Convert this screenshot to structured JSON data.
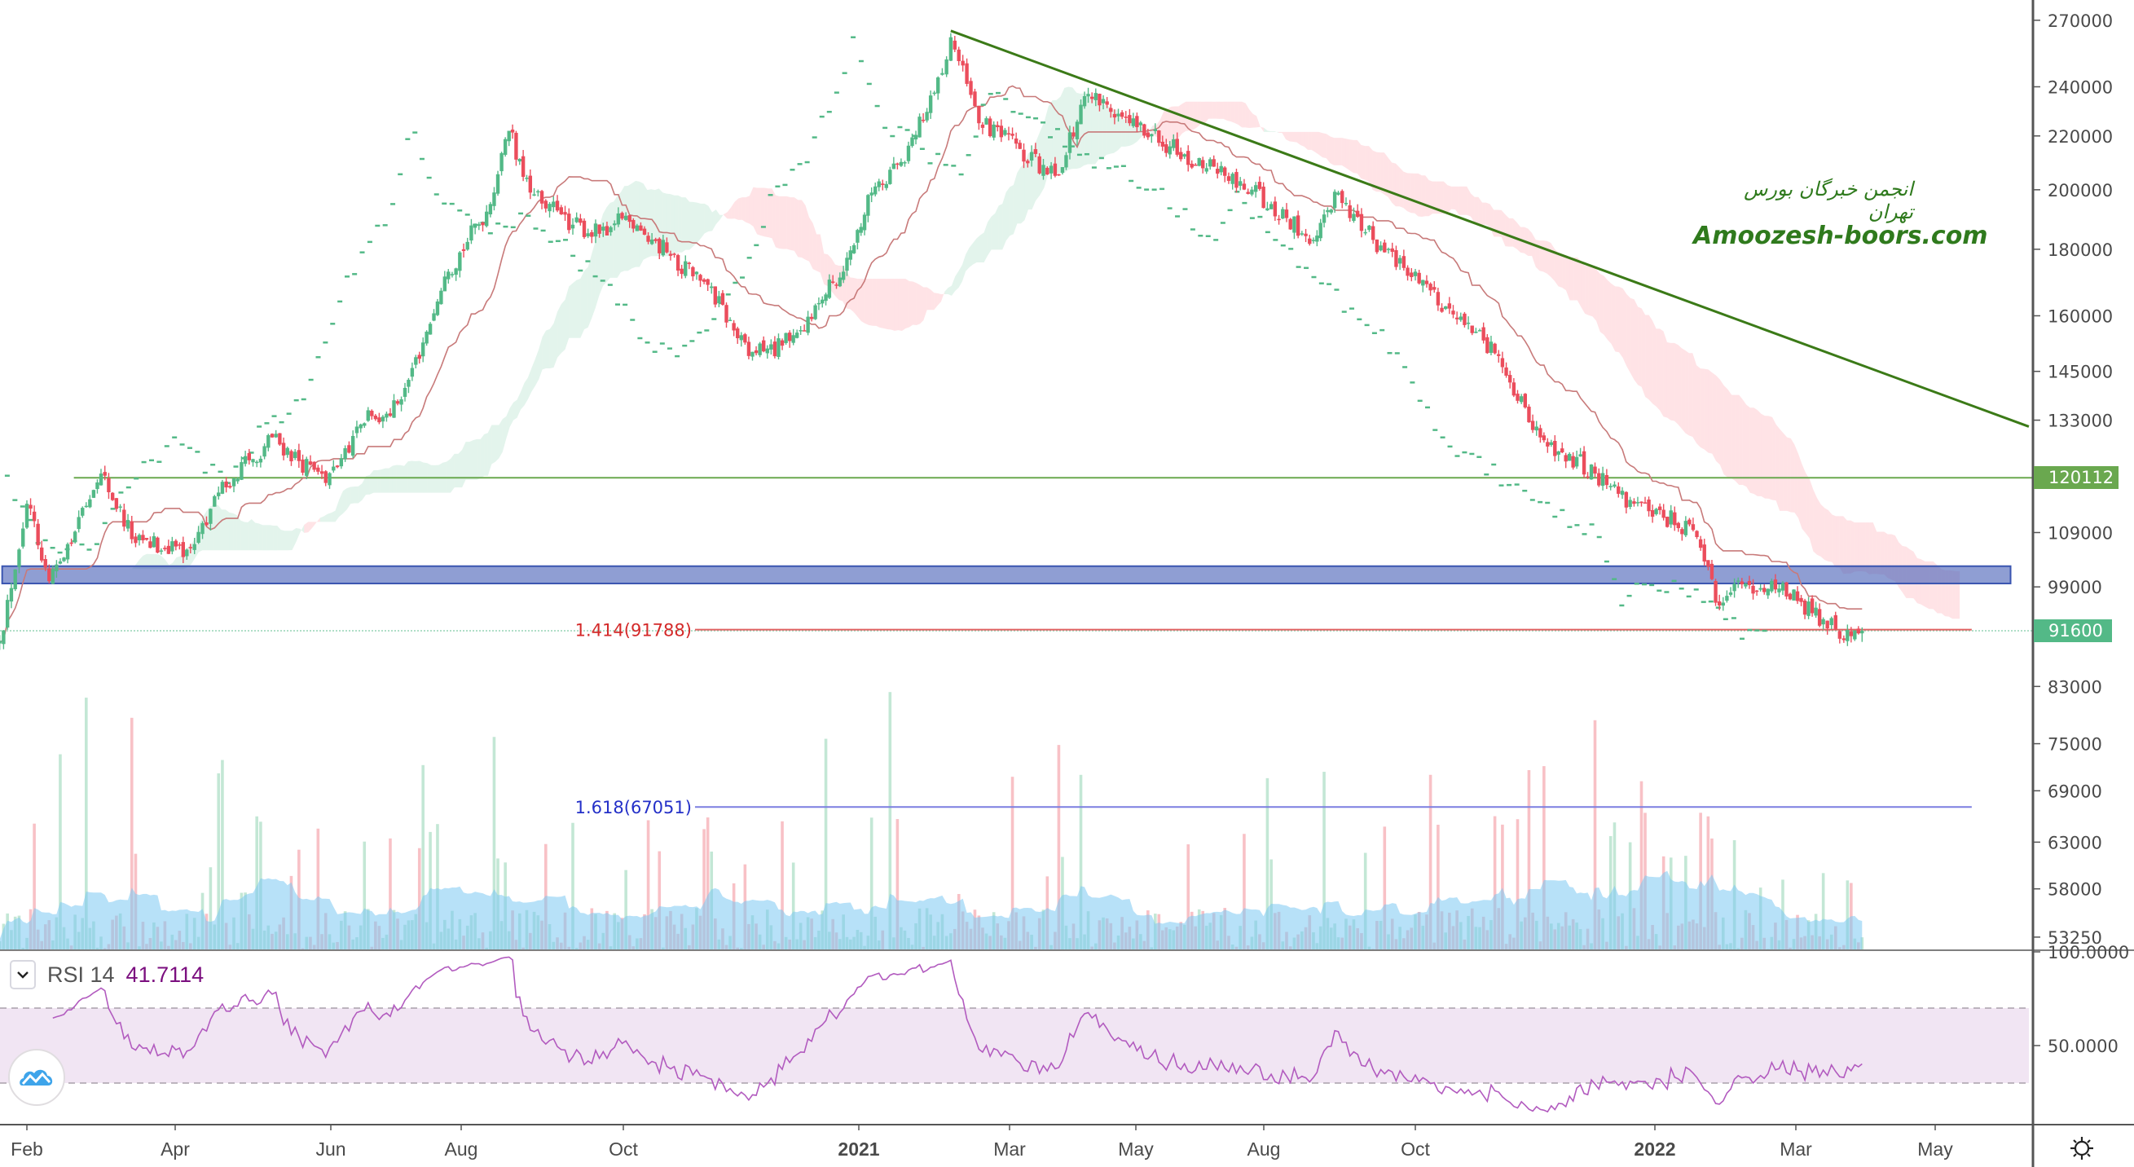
{
  "chart_data": {
    "type": "candlestick",
    "price_scale": "log",
    "price_axis_ticks": [
      270000,
      240000,
      220000,
      200000,
      180000,
      160000,
      145000,
      133000,
      109000,
      99000,
      83000,
      75000,
      69000,
      63000,
      58000,
      53250
    ],
    "time_axis_ticks": [
      {
        "label": "Feb",
        "date": "2020-02-01"
      },
      {
        "label": "Apr",
        "date": "2020-04-01"
      },
      {
        "label": "Jun",
        "date": "2020-06-01"
      },
      {
        "label": "Aug",
        "date": "2020-08-01"
      },
      {
        "label": "Oct",
        "date": "2020-10-01"
      },
      {
        "label": "2021",
        "date": "2021-01-01",
        "bold": true
      },
      {
        "label": "Mar",
        "date": "2021-03-01"
      },
      {
        "label": "May",
        "date": "2021-05-01"
      },
      {
        "label": "Aug",
        "date": "2021-08-01"
      },
      {
        "label": "Oct",
        "date": "2021-10-01"
      },
      {
        "label": "2022",
        "date": "2022-01-01",
        "bold": true
      },
      {
        "label": "Mar",
        "date": "2022-03-01"
      },
      {
        "label": "May",
        "date": "2022-05-01"
      }
    ],
    "price_points": [
      {
        "date": "2020-01-21",
        "close": 90000
      },
      {
        "date": "2020-02-01",
        "close": 114700
      },
      {
        "date": "2020-02-10",
        "close": 100000
      },
      {
        "date": "2020-03-02",
        "close": 121000
      },
      {
        "date": "2020-03-16",
        "close": 107000
      },
      {
        "date": "2020-04-07",
        "close": 106000
      },
      {
        "date": "2020-04-18",
        "close": 117000
      },
      {
        "date": "2020-05-09",
        "close": 129000
      },
      {
        "date": "2020-05-30",
        "close": 119000
      },
      {
        "date": "2020-06-15",
        "close": 132000
      },
      {
        "date": "2020-07-04",
        "close": 138000
      },
      {
        "date": "2020-07-26",
        "close": 173000
      },
      {
        "date": "2020-08-12",
        "close": 195000
      },
      {
        "date": "2020-08-19",
        "close": 222000
      },
      {
        "date": "2020-08-27",
        "close": 199000
      },
      {
        "date": "2020-09-12",
        "close": 188000
      },
      {
        "date": "2020-09-22",
        "close": 185000
      },
      {
        "date": "2020-10-02",
        "close": 191000
      },
      {
        "date": "2020-10-18",
        "close": 179000
      },
      {
        "date": "2020-11-03",
        "close": 169000
      },
      {
        "date": "2020-11-19",
        "close": 149000
      },
      {
        "date": "2020-12-05",
        "close": 153000
      },
      {
        "date": "2020-12-15",
        "close": 163000
      },
      {
        "date": "2020-12-26",
        "close": 173000
      },
      {
        "date": "2021-01-06",
        "close": 199000
      },
      {
        "date": "2021-01-19",
        "close": 210000
      },
      {
        "date": "2021-02-01",
        "close": 244000
      },
      {
        "date": "2021-02-06",
        "close": 262000
      },
      {
        "date": "2021-02-17",
        "close": 225000
      },
      {
        "date": "2021-03-06",
        "close": 215000
      },
      {
        "date": "2021-03-23",
        "close": 205000
      },
      {
        "date": "2021-04-08",
        "close": 237000
      },
      {
        "date": "2021-04-28",
        "close": 225000
      },
      {
        "date": "2021-06-05",
        "close": 213000
      },
      {
        "date": "2021-07-04",
        "close": 205000
      },
      {
        "date": "2021-08-04",
        "close": 195000
      },
      {
        "date": "2021-08-21",
        "close": 183000
      },
      {
        "date": "2021-08-31",
        "close": 199000
      },
      {
        "date": "2021-09-14",
        "close": 183000
      },
      {
        "date": "2021-10-01",
        "close": 173000
      },
      {
        "date": "2021-10-17",
        "close": 159000
      },
      {
        "date": "2021-11-02",
        "close": 149000
      },
      {
        "date": "2021-11-18",
        "close": 129000
      },
      {
        "date": "2021-12-09",
        "close": 121000
      },
      {
        "date": "2021-12-24",
        "close": 114700
      },
      {
        "date": "2022-01-17",
        "close": 109500
      },
      {
        "date": "2022-01-28",
        "close": 95800
      },
      {
        "date": "2022-02-08",
        "close": 99600
      },
      {
        "date": "2022-02-22",
        "close": 98700
      },
      {
        "date": "2022-03-13",
        "close": 93500
      },
      {
        "date": "2022-03-22",
        "close": 90100
      },
      {
        "date": "2022-03-30",
        "close": 91600
      }
    ],
    "last_price": {
      "value": 91600,
      "label": "91600",
      "color": "#53b987"
    },
    "horizontal_level": {
      "value": 120112,
      "label": "120112",
      "color": "#6aa84f",
      "from_date": "2020-02-20"
    },
    "trendline": {
      "from": {
        "date": "2021-02-06",
        "price": 265000
      },
      "to": {
        "date": "2022-06-11",
        "price": 131500
      },
      "color": "#3b7a17"
    },
    "zone": {
      "from_date": "2020-01-22",
      "to_date": "2022-06-03",
      "low": 99600,
      "high": 102700,
      "color": "#4a63b8"
    },
    "fib_levels": [
      {
        "label": "1.414(91788)",
        "value": 91788,
        "color": "#e06060",
        "text_color": "#d42a2a",
        "from_date": "2020-10-29",
        "to_date": "2022-05-17"
      },
      {
        "label": "1.618(67051)",
        "value": 67051,
        "color": "#7b7fe0",
        "text_color": "#2430c8",
        "from_date": "2020-10-29",
        "to_date": "2022-05-17"
      }
    ],
    "indicators": [
      "Ichimoku Cloud",
      "Volume",
      "RSI 14"
    ],
    "colors": {
      "up": "#53b987",
      "down": "#eb4d5c",
      "cloud_up": "#53b987",
      "cloud_down": "#ff9aa5",
      "base_line": "#c87a7a",
      "volume_ma": "#7cc8f2",
      "rsi": "#b25bbf",
      "rsi_band": "#f1e5f3"
    },
    "rsi": {
      "name": "RSI 14",
      "value": "41.7114",
      "ticks": [
        {
          "label": "100.0000",
          "value": 100
        },
        {
          "label": "50.0000",
          "value": 50
        }
      ],
      "upper": 70,
      "lower": 30
    }
  },
  "watermark": {
    "persian": "انجمن خبرگان بورس تهران",
    "english": "Amoozesh-boors.com"
  },
  "icons": {
    "rsi_toggle": "chevron-down-icon",
    "logo": "tradingview-logo-icon",
    "settings": "gear-icon"
  }
}
